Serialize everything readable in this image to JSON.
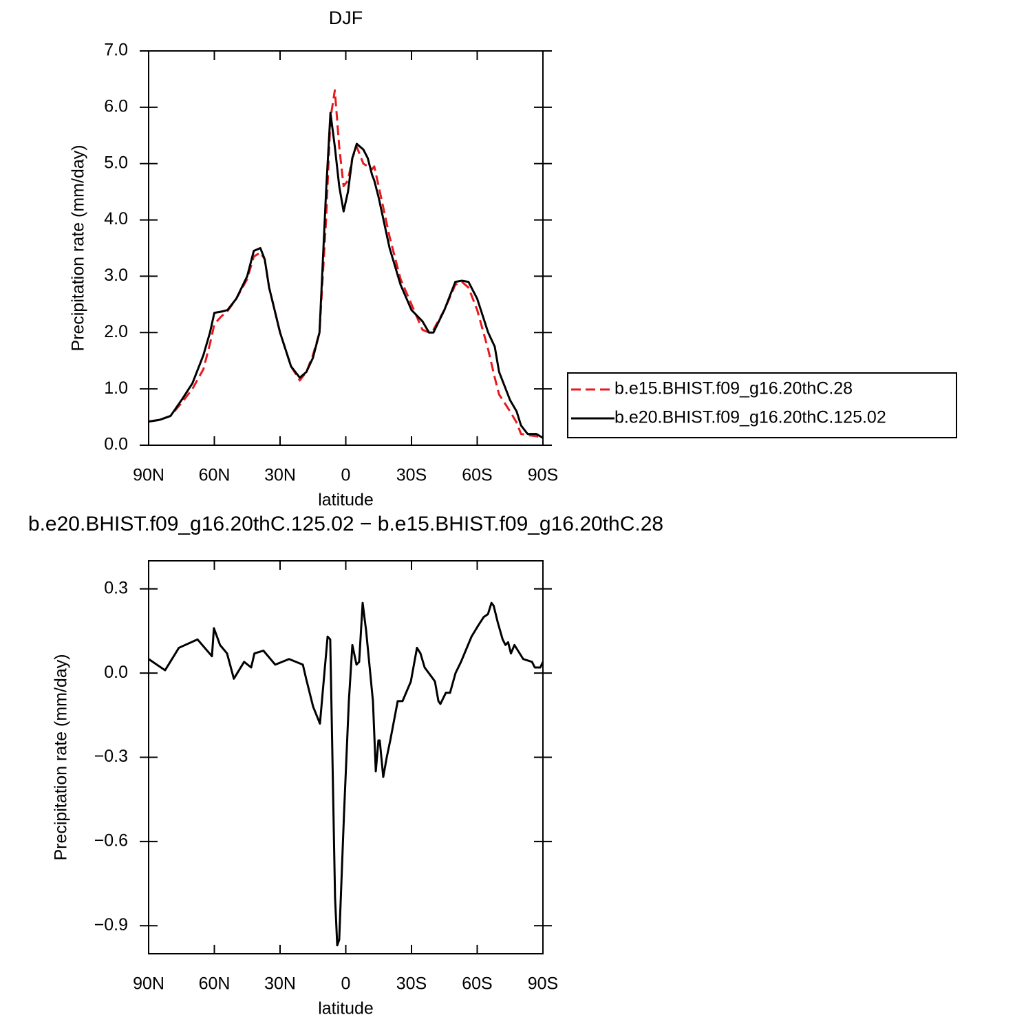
{
  "chart_data": [
    {
      "type": "line",
      "title": "DJF",
      "xlabel": "latitude",
      "ylabel": "Precipitation rate (mm/day)",
      "x": [
        90,
        85,
        80,
        75,
        70,
        65,
        62,
        60,
        57,
        54,
        50,
        45,
        42,
        39,
        37,
        35,
        30,
        25,
        21,
        18,
        15,
        12,
        9,
        7,
        5,
        3,
        1,
        -1,
        -3,
        -5,
        -8,
        -10,
        -12,
        -13,
        -15,
        -20,
        -25,
        -30,
        -35,
        -38,
        -40,
        -45,
        -50,
        -53,
        -56,
        -60,
        -65,
        -68,
        -70,
        -75,
        -78,
        -80,
        -83,
        -87,
        -90
      ],
      "series": [
        {
          "name": "b.e15.BHIST.f09_g16.20thC.28",
          "color": "#e8191c",
          "linestyle": "dashed",
          "values": [
            0.42,
            0.45,
            0.52,
            0.75,
            1.0,
            1.35,
            1.8,
            2.15,
            2.28,
            2.38,
            2.6,
            2.95,
            3.35,
            3.42,
            3.3,
            2.8,
            2.0,
            1.4,
            1.15,
            1.3,
            1.6,
            2.0,
            4.0,
            5.8,
            6.3,
            5.3,
            4.6,
            4.7,
            5.1,
            5.3,
            5.0,
            4.95,
            4.9,
            4.95,
            4.6,
            3.7,
            2.95,
            2.5,
            2.05,
            2.0,
            2.05,
            2.4,
            2.85,
            2.9,
            2.8,
            2.4,
            1.7,
            1.2,
            0.9,
            0.6,
            0.4,
            0.2,
            0.18,
            0.16,
            0.14
          ]
        },
        {
          "name": "b.e20.BHIST.f09_g16.20thC.125.02",
          "color": "#000000",
          "linestyle": "solid",
          "values": [
            0.42,
            0.45,
            0.52,
            0.8,
            1.1,
            1.6,
            2.0,
            2.35,
            2.37,
            2.4,
            2.6,
            3.0,
            3.45,
            3.5,
            3.3,
            2.8,
            2.0,
            1.4,
            1.2,
            1.3,
            1.55,
            2.0,
            4.5,
            5.9,
            5.3,
            4.6,
            4.15,
            4.5,
            5.1,
            5.35,
            5.25,
            5.1,
            4.8,
            4.7,
            4.4,
            3.5,
            2.85,
            2.4,
            2.2,
            2.0,
            2.0,
            2.4,
            2.9,
            2.92,
            2.9,
            2.6,
            2.0,
            1.75,
            1.3,
            0.8,
            0.6,
            0.35,
            0.2,
            0.2,
            0.13
          ]
        }
      ],
      "xlim": [
        90,
        -90
      ],
      "xticks": [
        {
          "value": 90,
          "label": "90N"
        },
        {
          "value": 60,
          "label": "60N"
        },
        {
          "value": 30,
          "label": "30N"
        },
        0,
        {
          "value": -30,
          "label": "30S"
        },
        {
          "value": -60,
          "label": "60S"
        },
        {
          "value": -90,
          "label": "90S"
        }
      ],
      "ylim": [
        0,
        7
      ],
      "yticks": [
        {
          "value": 0,
          "label": "0.0"
        },
        {
          "value": 1,
          "label": "1.0"
        },
        {
          "value": 2,
          "label": "2.0"
        },
        {
          "value": 3,
          "label": "3.0"
        },
        {
          "value": 4,
          "label": "4.0"
        },
        {
          "value": 5,
          "label": "5.0"
        },
        {
          "value": 6,
          "label": "6.0"
        },
        {
          "value": 7,
          "label": "7.0"
        }
      ],
      "legend": "right"
    },
    {
      "type": "line",
      "title": "b.e20.BHIST.f09_g16.20thC.125.02 − b.e15.BHIST.f09_g16.20thC.28",
      "xlabel": "latitude",
      "ylabel": "Precipitation rate (mm/day)",
      "x": [
        90,
        82.5,
        76.2,
        67.7,
        61.1,
        60.2,
        57.4,
        54.2,
        51.1,
        46.4,
        43.2,
        41.7,
        37.6,
        32.2,
        25.9,
        19.6,
        18.1,
        14.9,
        11.8,
        8.3,
        7.1,
        4.9,
        3.9,
        3,
        0.8,
        -1.4,
        -3,
        -4.9,
        -6.1,
        -7.7,
        -9.3,
        -12.4,
        -13.7,
        -14.9,
        -15.5,
        -17.1,
        -18.7,
        -20.3,
        -23.7,
        -25.9,
        -29.7,
        -32.5,
        -34.1,
        -36,
        -39.8,
        -40.7,
        -42.3,
        -43.2,
        -45.7,
        -47.6,
        -50.1,
        -52.6,
        -57.4,
        -60.5,
        -63,
        -64.9,
        -66.5,
        -67.5,
        -69.4,
        -71.6,
        -72.9,
        -74.1,
        -75.4,
        -77,
        -81,
        -85,
        -86.3,
        -88.8,
        -90
      ],
      "series": [
        {
          "color": "#000000",
          "linestyle": "solid",
          "values": [
            0.05,
            0.01,
            0.09,
            0.12,
            0.06,
            0.16,
            0.1,
            0.07,
            -0.02,
            0.04,
            0.02,
            0.07,
            0.08,
            0.03,
            0.05,
            0.03,
            -0.02,
            -0.12,
            -0.18,
            0.13,
            0.12,
            -0.8,
            -0.97,
            -0.95,
            -0.5,
            -0.1,
            0.1,
            0.03,
            0.04,
            0.25,
            0.15,
            -0.1,
            -0.35,
            -0.24,
            -0.24,
            -0.37,
            -0.3,
            -0.24,
            -0.1,
            -0.1,
            -0.03,
            0.09,
            0.07,
            0.02,
            -0.02,
            -0.03,
            -0.1,
            -0.11,
            -0.07,
            -0.07,
            0.0,
            0.04,
            0.13,
            0.17,
            0.2,
            0.21,
            0.25,
            0.24,
            0.18,
            0.12,
            0.1,
            0.11,
            0.07,
            0.1,
            0.05,
            0.04,
            0.02,
            0.02,
            0.04
          ]
        }
      ],
      "xlim": [
        90,
        -90
      ],
      "xticks": [
        {
          "value": 90,
          "label": "90N"
        },
        {
          "value": 60,
          "label": "60N"
        },
        {
          "value": 30,
          "label": "30N"
        },
        0,
        {
          "value": -30,
          "label": "30S"
        },
        {
          "value": -60,
          "label": "60S"
        },
        {
          "value": -90,
          "label": "90S"
        }
      ],
      "ylim": [
        -1.0,
        0.4
      ],
      "yticks": [
        {
          "value": 0.3,
          "label": "0.3"
        },
        {
          "value": 0,
          "label": "0.0"
        },
        {
          "value": -0.3,
          "label": "−0.3"
        },
        {
          "value": -0.6,
          "label": "−0.6"
        },
        {
          "value": -0.9,
          "label": "−0.9"
        }
      ]
    }
  ]
}
